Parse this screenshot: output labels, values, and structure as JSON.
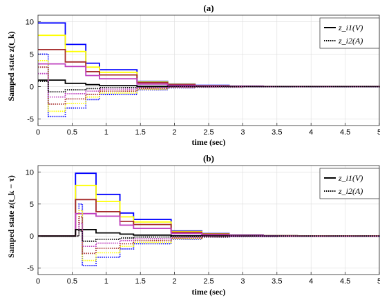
{
  "chart_data": [
    {
      "type": "line",
      "title": "(a)",
      "xlabel": "time (sec)",
      "ylabel": "Samped state z(t_k)",
      "xlim": [
        0,
        5
      ],
      "ylim": [
        -6,
        11
      ],
      "x_ticks": [
        "0",
        "0.5",
        "1",
        "1.5",
        "2",
        "2.5",
        "3",
        "3.5",
        "4",
        "4.5",
        "5"
      ],
      "y_ticks": [
        "-5",
        "0",
        "5",
        "10"
      ],
      "grid": true,
      "legend_position": "top-right",
      "legend": [
        {
          "label": "z_i1(V)",
          "style": "solid"
        },
        {
          "label": "z_i2(A)",
          "style": "dotted"
        }
      ],
      "series": [
        {
          "color": "#0000ff",
          "style": "solid",
          "x": [
            0,
            0.4,
            0.7,
            0.9,
            1.45,
            1.9,
            2.3,
            2.8,
            3.3,
            5
          ],
          "y": [
            9.8,
            6.5,
            3.6,
            2.6,
            0.8,
            0.4,
            0.2,
            0.08,
            0.02,
            0
          ]
        },
        {
          "color": "#ffff00",
          "style": "solid",
          "x": [
            0,
            0.4,
            0.7,
            0.9,
            1.45,
            1.9,
            2.3,
            2.8,
            3.3,
            5
          ],
          "y": [
            7.9,
            5.4,
            3.0,
            2.2,
            0.7,
            0.35,
            0.15,
            0.06,
            0.02,
            0
          ]
        },
        {
          "color": "#a52a2a",
          "style": "solid",
          "x": [
            0,
            0.4,
            0.7,
            0.9,
            1.45,
            1.9,
            2.3,
            2.8,
            3.3,
            5
          ],
          "y": [
            5.7,
            3.8,
            2.3,
            1.8,
            0.6,
            0.3,
            0.12,
            0.05,
            0.01,
            0
          ]
        },
        {
          "color": "#bf40bf",
          "style": "solid",
          "x": [
            0,
            0.4,
            0.7,
            0.9,
            1.45,
            1.9,
            2.3,
            2.8,
            3.3,
            5
          ],
          "y": [
            3.5,
            3.1,
            1.7,
            1.2,
            0.4,
            0.2,
            0.1,
            0.04,
            0.01,
            0
          ]
        },
        {
          "color": "#000000",
          "style": "solid",
          "x": [
            0,
            0.4,
            0.7,
            0.9,
            1.45,
            1.9,
            2.3,
            2.8,
            3.3,
            5
          ],
          "y": [
            1.0,
            0.5,
            0.3,
            0.15,
            0.05,
            0.02,
            0.01,
            0,
            0,
            0
          ]
        },
        {
          "color": "#0000ff",
          "style": "dotted",
          "x": [
            0,
            0.15,
            0.4,
            0.7,
            0.9,
            1.45,
            1.9,
            2.3,
            3.0,
            5
          ],
          "y": [
            5.0,
            -4.6,
            -3.3,
            -2.0,
            -1.2,
            -0.5,
            -0.2,
            -0.08,
            -0.02,
            0
          ]
        },
        {
          "color": "#ffff00",
          "style": "dotted",
          "x": [
            0,
            0.15,
            0.4,
            0.7,
            0.9,
            1.45,
            1.9,
            2.3,
            3.0,
            5
          ],
          "y": [
            4.0,
            -3.8,
            -2.6,
            -1.6,
            -1.0,
            -0.4,
            -0.15,
            -0.05,
            -0.01,
            0
          ]
        },
        {
          "color": "#a52a2a",
          "style": "dotted",
          "x": [
            0,
            0.15,
            0.4,
            0.7,
            0.9,
            1.45,
            1.9,
            2.3,
            3.0,
            5
          ],
          "y": [
            3.0,
            -2.7,
            -1.9,
            -1.2,
            -0.7,
            -0.3,
            -0.1,
            -0.04,
            -0.01,
            0
          ]
        },
        {
          "color": "#bf40bf",
          "style": "dotted",
          "x": [
            0,
            0.15,
            0.4,
            0.7,
            0.9,
            1.45,
            1.9,
            2.3,
            3.0,
            5
          ],
          "y": [
            2.0,
            -1.6,
            -1.1,
            -0.7,
            -0.4,
            -0.15,
            -0.06,
            -0.02,
            0,
            0
          ]
        },
        {
          "color": "#000000",
          "style": "dotted",
          "x": [
            0,
            0.15,
            0.4,
            0.7,
            0.9,
            1.45,
            1.9,
            5
          ],
          "y": [
            0.8,
            -0.8,
            -0.5,
            -0.3,
            -0.15,
            -0.05,
            -0.01,
            0
          ]
        }
      ]
    },
    {
      "type": "line",
      "title": "(b)",
      "xlabel": "time (sec)",
      "ylabel": "Samped state z(t_k − τ)",
      "xlim": [
        0,
        5
      ],
      "ylim": [
        -6,
        11
      ],
      "x_ticks": [
        "0",
        "0.5",
        "1",
        "1.5",
        "2",
        "2.5",
        "3",
        "3.5",
        "4",
        "4.5",
        "5"
      ],
      "y_ticks": [
        "-5",
        "0",
        "5",
        "10"
      ],
      "grid": true,
      "legend_position": "top-right",
      "legend": [
        {
          "label": "z_i1(V)",
          "style": "solid"
        },
        {
          "label": "z_i2(A)",
          "style": "dotted"
        }
      ],
      "series": [
        {
          "color": "#0000ff",
          "style": "solid",
          "x": [
            0,
            0.5,
            0.55,
            0.85,
            1.2,
            1.4,
            1.95,
            2.4,
            2.8,
            3.3,
            3.8,
            5
          ],
          "y": [
            0,
            0,
            9.8,
            6.5,
            3.6,
            2.6,
            0.8,
            0.4,
            0.2,
            0.08,
            0.02,
            0
          ]
        },
        {
          "color": "#ffff00",
          "style": "solid",
          "x": [
            0,
            0.5,
            0.55,
            0.85,
            1.2,
            1.4,
            1.95,
            2.4,
            2.8,
            3.3,
            3.8,
            5
          ],
          "y": [
            0,
            0,
            7.9,
            5.4,
            3.0,
            2.2,
            0.7,
            0.35,
            0.15,
            0.06,
            0.02,
            0
          ]
        },
        {
          "color": "#a52a2a",
          "style": "solid",
          "x": [
            0,
            0.5,
            0.55,
            0.85,
            1.2,
            1.4,
            1.95,
            2.4,
            2.8,
            3.3,
            3.8,
            5
          ],
          "y": [
            0,
            0,
            5.7,
            3.8,
            2.3,
            1.8,
            0.6,
            0.3,
            0.12,
            0.05,
            0.01,
            0
          ]
        },
        {
          "color": "#bf40bf",
          "style": "solid",
          "x": [
            0,
            0.5,
            0.55,
            0.85,
            1.2,
            1.4,
            1.95,
            2.4,
            2.8,
            3.3,
            3.8,
            5
          ],
          "y": [
            0,
            0,
            3.5,
            3.1,
            1.7,
            1.2,
            0.4,
            0.2,
            0.1,
            0.04,
            0.01,
            0
          ]
        },
        {
          "color": "#000000",
          "style": "solid",
          "x": [
            0,
            0.5,
            0.55,
            0.85,
            1.2,
            1.4,
            1.95,
            2.4,
            2.8,
            3.3,
            5
          ],
          "y": [
            0,
            0,
            1.0,
            0.5,
            0.3,
            0.15,
            0.05,
            0.02,
            0.01,
            0,
            0
          ]
        },
        {
          "color": "#0000ff",
          "style": "dotted",
          "x": [
            0,
            0.5,
            0.6,
            0.65,
            0.85,
            1.2,
            1.4,
            1.95,
            2.4,
            2.8,
            3.5,
            5
          ],
          "y": [
            0,
            0,
            5.0,
            -4.6,
            -3.3,
            -2.0,
            -1.2,
            -0.5,
            -0.2,
            -0.08,
            -0.02,
            0
          ]
        },
        {
          "color": "#ffff00",
          "style": "dotted",
          "x": [
            0,
            0.5,
            0.6,
            0.65,
            0.85,
            1.2,
            1.4,
            1.95,
            2.4,
            2.8,
            3.5,
            5
          ],
          "y": [
            0,
            0,
            4.0,
            -3.8,
            -2.6,
            -1.6,
            -1.0,
            -0.4,
            -0.15,
            -0.05,
            -0.01,
            0
          ]
        },
        {
          "color": "#a52a2a",
          "style": "dotted",
          "x": [
            0,
            0.5,
            0.6,
            0.65,
            0.85,
            1.2,
            1.4,
            1.95,
            2.4,
            2.8,
            3.5,
            5
          ],
          "y": [
            0,
            0,
            3.0,
            -2.7,
            -1.9,
            -1.2,
            -0.7,
            -0.3,
            -0.1,
            -0.04,
            -0.01,
            0
          ]
        },
        {
          "color": "#bf40bf",
          "style": "dotted",
          "x": [
            0,
            0.5,
            0.6,
            0.65,
            0.85,
            1.2,
            1.4,
            1.95,
            2.4,
            2.8,
            5
          ],
          "y": [
            0,
            0,
            2.0,
            -1.6,
            -1.1,
            -0.7,
            -0.4,
            -0.15,
            -0.06,
            -0.02,
            0
          ]
        },
        {
          "color": "#000000",
          "style": "dotted",
          "x": [
            0,
            0.5,
            0.6,
            0.65,
            0.85,
            1.2,
            1.4,
            1.95,
            2.4,
            5
          ],
          "y": [
            0,
            0,
            0.8,
            -0.8,
            -0.5,
            -0.3,
            -0.15,
            -0.05,
            -0.01,
            0
          ]
        }
      ]
    }
  ]
}
